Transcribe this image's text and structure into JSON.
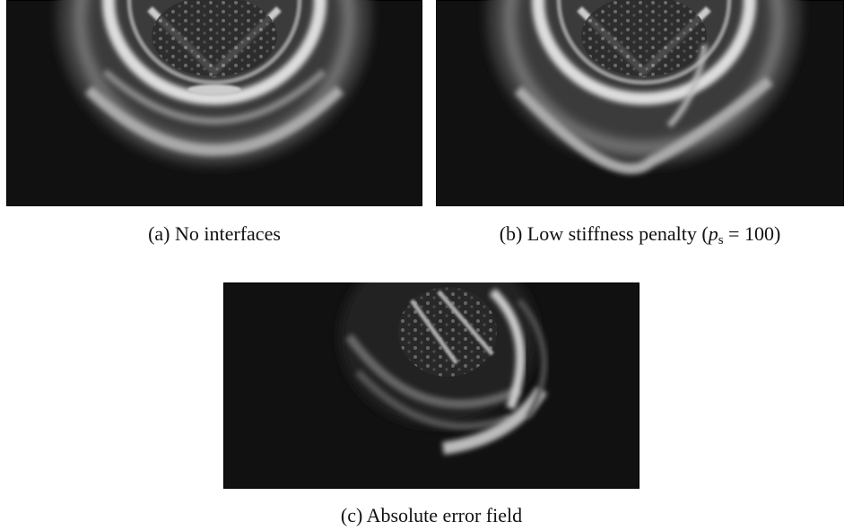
{
  "figures": [
    {
      "label": "(a)",
      "caption": "No interfaces"
    },
    {
      "label": "(b)",
      "caption": "Low stiffness penalty",
      "math": {
        "open": "(",
        "var": "p",
        "sub": "s",
        "op": "=",
        "rhs": "100",
        "close": ")"
      }
    },
    {
      "label": "(c)",
      "caption": "Absolute error field"
    }
  ]
}
